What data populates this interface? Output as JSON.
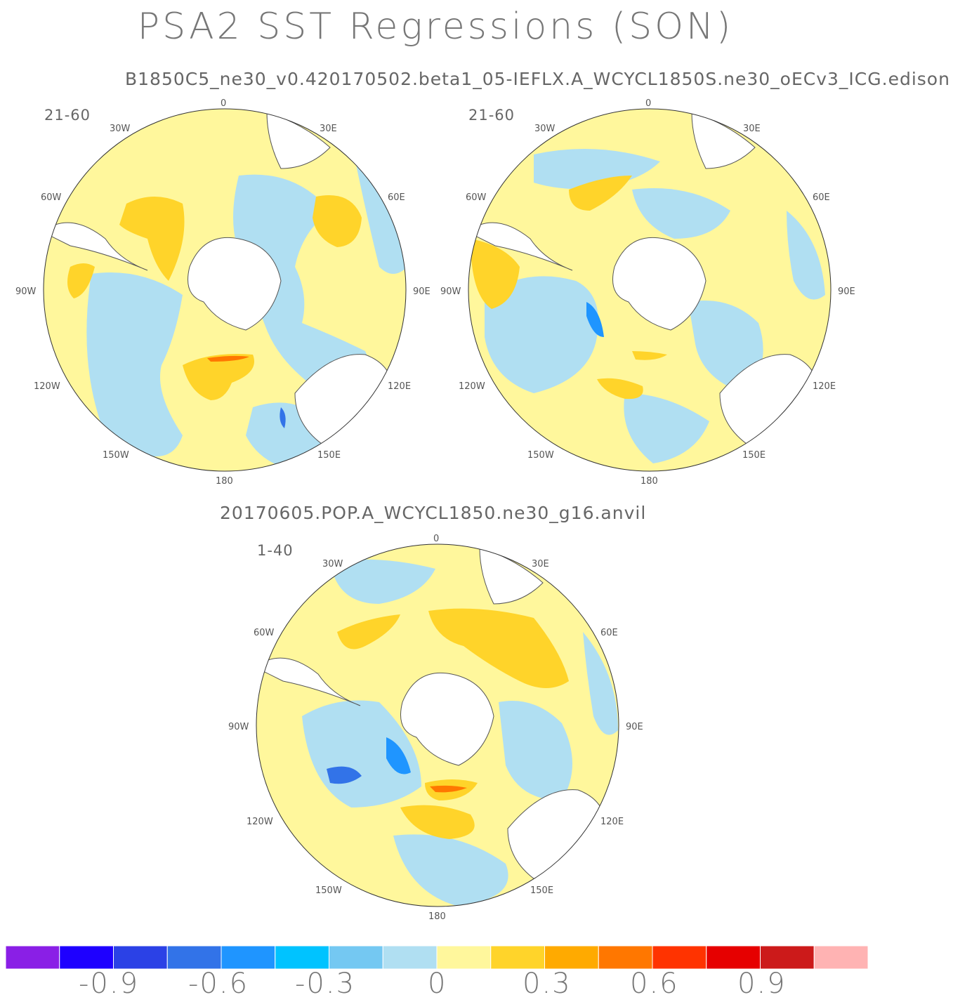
{
  "title": "PSA2 SST Regressions (SON)",
  "runs": [
    "B1850C5_ne30_v0.420170502.beta1_05-IEFLX.A_WCYCL1850S.ne30_oECv3_ICG.edison",
    "20170605.POP.A_WCYCL1850.ne30_g16.anvil"
  ],
  "panels": [
    {
      "label": "21-60"
    },
    {
      "label": "21-60"
    },
    {
      "label": "1-40"
    }
  ],
  "longitude_labels": [
    "0",
    "30E",
    "60E",
    "90E",
    "120E",
    "150E",
    "180",
    "150W",
    "120W",
    "90W",
    "60W",
    "30W"
  ],
  "colorbar": {
    "colors": [
      "#8a1fe6",
      "#1e00ff",
      "#2b41e6",
      "#3273e8",
      "#1f95ff",
      "#00c3ff",
      "#74c8f2",
      "#b0dff2",
      "#fff79c",
      "#ffd42a",
      "#ffaa00",
      "#ff7700",
      "#ff3300",
      "#e60000",
      "#cc1a1a",
      "#ffb3b3"
    ],
    "tick_labels": [
      "-0.9",
      "-0.6",
      "-0.3",
      "0",
      "0.3",
      "0.6",
      "0.9"
    ],
    "tick_values": [
      -0.9,
      -0.6,
      -0.3,
      0,
      0.3,
      0.6,
      0.9
    ],
    "range": [
      -1.2,
      1.2
    ],
    "interval": 0.15
  }
}
